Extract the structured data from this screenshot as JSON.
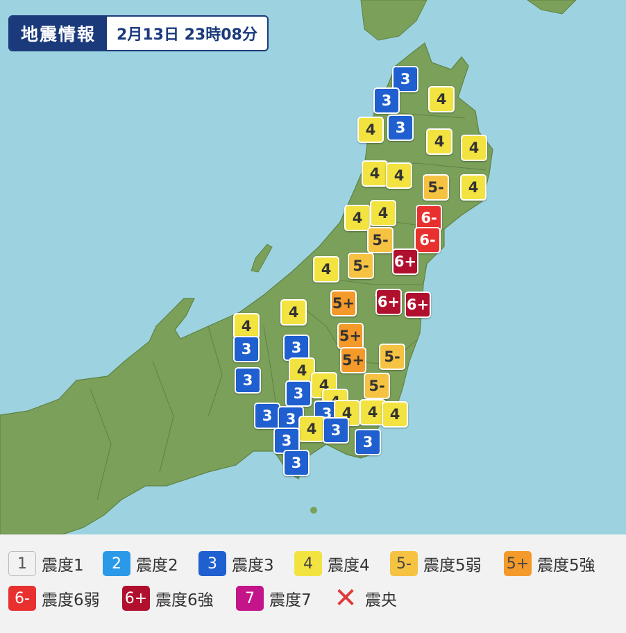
{
  "header": {
    "label": "地震情報",
    "datetime": "2月13日 23時08分"
  },
  "colors": {
    "sea": "#9dd3e0",
    "land": "#7aa05a",
    "intensity3": "#1f5fcf",
    "intensity4": "#f3e340",
    "intensity5_lower": "#f5c242",
    "intensity5_upper": "#f39a2a",
    "intensity6_lower": "#e8302f",
    "intensity6_upper": "#b0102e",
    "intensity7": "#c3148a"
  },
  "markers": [
    {
      "code": "3",
      "t": "3"
    },
    {
      "code": "3",
      "t": "3"
    },
    {
      "code": "4",
      "t": "4"
    },
    {
      "code": "4",
      "t": "4"
    },
    {
      "code": "3",
      "t": "3"
    },
    {
      "code": "4",
      "t": "4"
    },
    {
      "code": "4",
      "t": "4"
    },
    {
      "code": "4",
      "t": "4"
    },
    {
      "code": "4",
      "t": "4"
    },
    {
      "code": "5m",
      "t": "5-"
    },
    {
      "code": "4",
      "t": "4"
    },
    {
      "code": "4",
      "t": "4"
    },
    {
      "code": "4",
      "t": "4"
    },
    {
      "code": "6m",
      "t": "6-"
    },
    {
      "code": "5m",
      "t": "5-"
    },
    {
      "code": "6m",
      "t": "6-"
    },
    {
      "code": "6p",
      "t": "6+"
    },
    {
      "code": "5m",
      "t": "5-"
    },
    {
      "code": "4",
      "t": "4"
    },
    {
      "code": "5p",
      "t": "5+"
    },
    {
      "code": "6p",
      "t": "6+"
    },
    {
      "code": "6p",
      "t": "6+"
    },
    {
      "code": "4",
      "t": "4"
    },
    {
      "code": "4",
      "t": "4"
    },
    {
      "code": "5p",
      "t": "5+"
    },
    {
      "code": "3",
      "t": "3"
    },
    {
      "code": "3",
      "t": "3"
    },
    {
      "code": "5m",
      "t": "5-"
    },
    {
      "code": "5p",
      "t": "5+"
    },
    {
      "code": "4",
      "t": "4"
    },
    {
      "code": "3",
      "t": "3"
    },
    {
      "code": "4",
      "t": "4"
    },
    {
      "code": "5m",
      "t": "5-"
    },
    {
      "code": "3",
      "t": "3"
    },
    {
      "code": "4",
      "t": "4"
    },
    {
      "code": "3",
      "t": "3"
    },
    {
      "code": "3",
      "t": "3"
    },
    {
      "code": "3",
      "t": "3"
    },
    {
      "code": "4",
      "t": "4"
    },
    {
      "code": "4",
      "t": "4"
    },
    {
      "code": "4",
      "t": "4"
    },
    {
      "code": "4",
      "t": "4"
    },
    {
      "code": "3",
      "t": "3"
    },
    {
      "code": "3",
      "t": "3"
    },
    {
      "code": "3",
      "t": "3"
    },
    {
      "code": "3",
      "t": "3"
    }
  ],
  "legend": [
    {
      "swatch": "1",
      "label": "震度1",
      "icon": "intensity-1-swatch"
    },
    {
      "swatch": "2",
      "label": "震度2",
      "icon": "intensity-2-swatch"
    },
    {
      "swatch": "3",
      "label": "震度3",
      "icon": "intensity-3-swatch"
    },
    {
      "swatch": "4",
      "label": "震度4",
      "icon": "intensity-4-swatch"
    },
    {
      "swatch": "5-",
      "label": "震度5弱",
      "icon": "intensity-5-lower-swatch"
    },
    {
      "swatch": "5+",
      "label": "震度5強",
      "icon": "intensity-5-upper-swatch"
    },
    {
      "swatch": "6-",
      "label": "震度6弱",
      "icon": "intensity-6-lower-swatch"
    },
    {
      "swatch": "6+",
      "label": "震度6強",
      "icon": "intensity-6-upper-swatch"
    },
    {
      "swatch": "7",
      "label": "震度7",
      "icon": "intensity-7-swatch"
    },
    {
      "swatch": "✕",
      "label": "震央",
      "icon": "epicenter-cross-icon"
    }
  ]
}
